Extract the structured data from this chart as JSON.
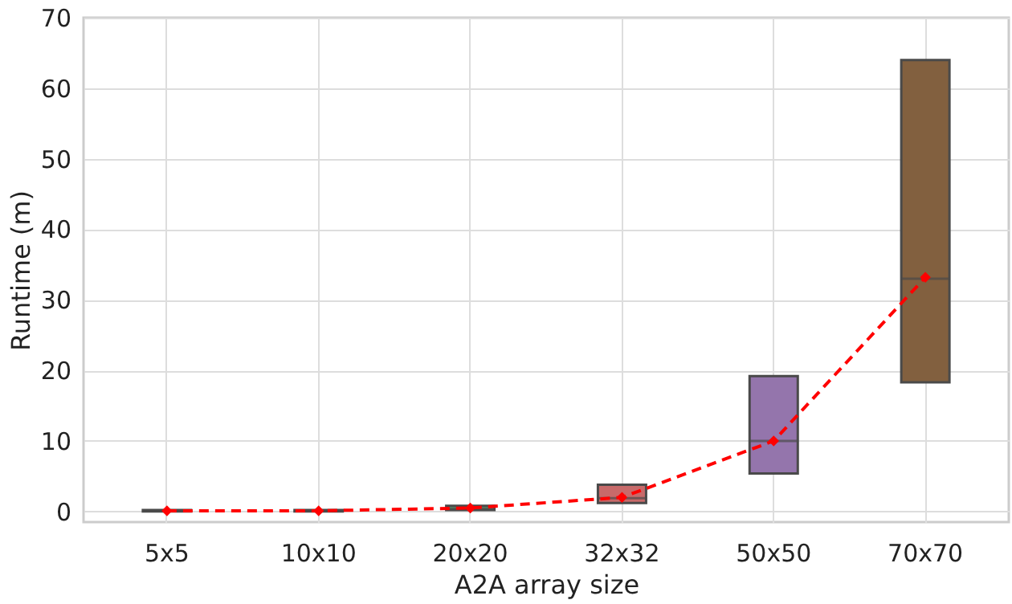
{
  "chart_data": {
    "type": "box",
    "xlabel": "A2A array size",
    "ylabel": "Runtime (m)",
    "categories": [
      "5x5",
      "10x10",
      "20x20",
      "32x32",
      "50x50",
      "70x70"
    ],
    "ylim": [
      -1.5,
      70
    ],
    "yticks": [
      0,
      10,
      20,
      30,
      40,
      50,
      60,
      70
    ],
    "grid": true,
    "colors": [
      "#5a79a8",
      "#d08a5a",
      "#5f9e6e",
      "#c86a6a",
      "#9475ac",
      "#82603f"
    ],
    "boxes": [
      {
        "low": 0.0,
        "q1": 0.0,
        "median": 0.1,
        "q3": 0.2,
        "high": 0.2
      },
      {
        "low": 0.0,
        "q1": 0.0,
        "median": 0.1,
        "q3": 0.2,
        "high": 0.2
      },
      {
        "low": 0.2,
        "q1": 0.2,
        "median": 0.4,
        "q3": 0.8,
        "high": 0.8
      },
      {
        "low": 1.2,
        "q1": 1.2,
        "median": 1.9,
        "q3": 3.8,
        "high": 3.8
      },
      {
        "low": 5.4,
        "q1": 5.4,
        "median": 10,
        "q3": 19.2,
        "high": 19.2
      },
      {
        "low": 18.3,
        "q1": 18.3,
        "median": 33,
        "q3": 64,
        "high": 64
      }
    ],
    "series": [
      {
        "type": "line",
        "color": "#ff0000",
        "values": [
          0.1,
          0.1,
          0.5,
          2.0,
          10.0,
          33.2
        ],
        "line_style": "dashed",
        "marker": "diamond"
      }
    ]
  }
}
